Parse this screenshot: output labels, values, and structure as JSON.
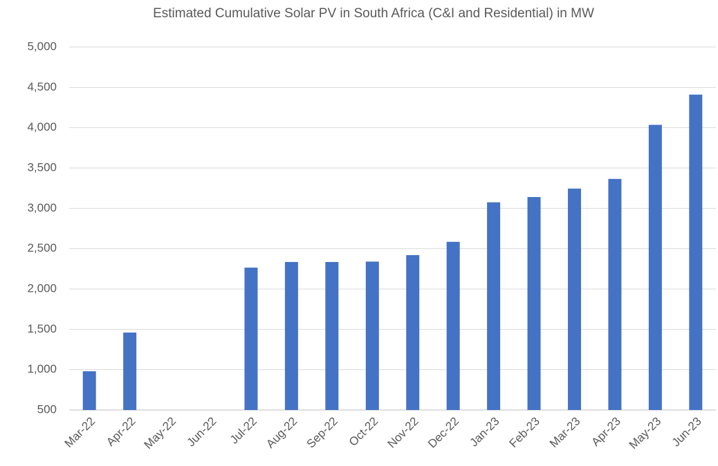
{
  "chart_data": {
    "type": "bar",
    "title": "Estimated Cumulative Solar PV in South Africa (C&I and Residential) in MW",
    "categories": [
      "Mar-22",
      "Apr-22",
      "May-22",
      "Jun-22",
      "Jul-22",
      "Aug-22",
      "Sep-22",
      "Oct-22",
      "Nov-22",
      "Dec-22",
      "Jan-23",
      "Feb-23",
      "Mar-23",
      "Apr-23",
      "May-23",
      "Jun-23"
    ],
    "values": [
      980,
      1460,
      null,
      null,
      2265,
      2335,
      2335,
      2340,
      2420,
      2585,
      3075,
      3140,
      3245,
      3365,
      4035,
      4410
    ],
    "color": "#4472c4",
    "ylim": [
      500,
      5000
    ],
    "yticks": [
      500,
      {
        "value": 1000,
        "label": "1,000"
      },
      {
        "value": 1500,
        "label": "1,500"
      },
      {
        "value": 2000,
        "label": "2,000"
      },
      {
        "value": 2500,
        "label": "2,500"
      },
      {
        "value": 3000,
        "label": "3,000"
      },
      {
        "value": 3500,
        "label": "3,500"
      },
      {
        "value": 4000,
        "label": "4,000"
      },
      {
        "value": 4500,
        "label": "4,500"
      },
      {
        "value": 5000,
        "label": "5,000"
      }
    ],
    "grid": true
  }
}
